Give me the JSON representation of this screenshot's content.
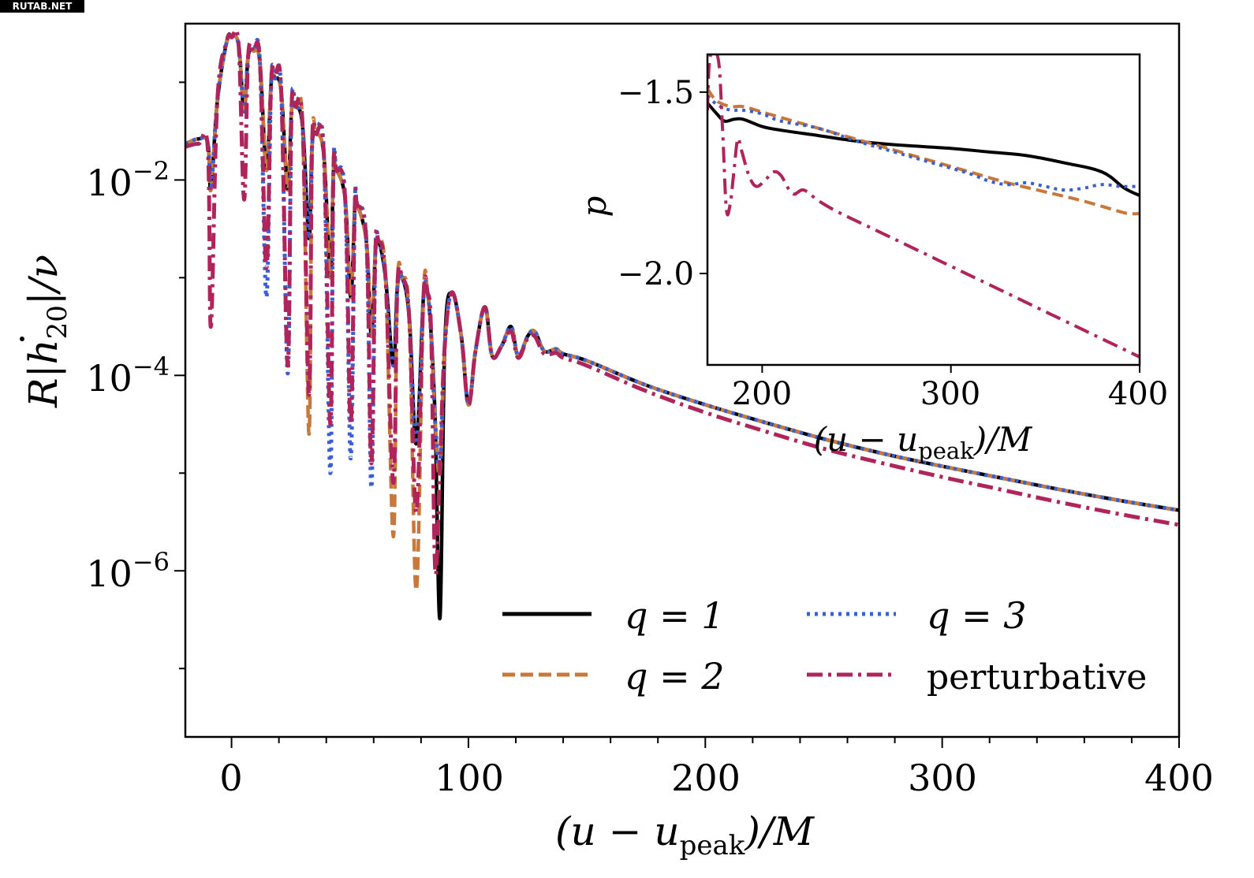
{
  "watermark": "RUTAB.NET",
  "colors": {
    "q1": "#000000",
    "q2": "#c8783a",
    "q3": "#3a5fd0",
    "perturbative": "#b0245c",
    "axis": "#000000",
    "background": "#ffffff"
  },
  "chart_data": [
    {
      "id": "main",
      "type": "line",
      "xlabel": "(u − u_peak)/M",
      "xlabel_parts": {
        "pre": "(u − u",
        "sub": "peak",
        "post": ")/M"
      },
      "ylabel": "R|ḣ20|/ν",
      "ylabel_parts": {
        "pre": "R|",
        "h": "h",
        "sub": "20",
        "post": "|/ν"
      },
      "yscale": "log",
      "xlim": [
        -19.5,
        400
      ],
      "ylim_log10": [
        -7.7,
        -0.4
      ],
      "xticks": [
        0,
        100,
        200,
        300,
        400
      ],
      "xtick_labels": [
        "0",
        "100",
        "200",
        "300",
        "400"
      ],
      "xminor_step": 20,
      "yticks_log10": [
        -2,
        -4,
        -6
      ],
      "ytick_labels": [
        {
          "base": "10",
          "exp": "−2"
        },
        {
          "base": "10",
          "exp": "−4"
        },
        {
          "base": "10",
          "exp": "−6"
        }
      ],
      "yminor_log10": [
        -1,
        -3,
        -5,
        -7
      ],
      "legend": {
        "placement": "lower-right",
        "columns": 2,
        "entries": [
          {
            "key": "q1",
            "label": "q = 1",
            "style": "solid"
          },
          {
            "key": "q2",
            "label": "q = 2",
            "style": "dashed"
          },
          {
            "key": "q3",
            "label": "q = 3",
            "style": "dotted"
          },
          {
            "key": "perturbative",
            "label": "perturbative",
            "style": "dashdot"
          }
        ]
      },
      "series": [
        {
          "key": "q1",
          "name": "q = 1",
          "style": "solid",
          "x": [
            -19.5,
            -14,
            -10,
            -8.7,
            -6,
            -2,
            0,
            3,
            5.3,
            7,
            9.3,
            12,
            14.7,
            16.7,
            18.3,
            21,
            23.7,
            25.3,
            27,
            30,
            32.7,
            34,
            35.7,
            39,
            41.7,
            43,
            44.3,
            48,
            50.3,
            52,
            53,
            57,
            59,
            60.7,
            62,
            65,
            68.3,
            70,
            72,
            75,
            78,
            81,
            82.7,
            84.3,
            86,
            88,
            90,
            93,
            97,
            100,
            103,
            107,
            110,
            114,
            118,
            121,
            125,
            128,
            132,
            137,
            140,
            150,
            175,
            200,
            225,
            250,
            275,
            300,
            325,
            350,
            375,
            400
          ],
          "log10y": [
            -1.63,
            -1.58,
            -1.62,
            -2.1,
            -1.2,
            -0.58,
            -0.53,
            -0.62,
            -1.3,
            -0.74,
            -0.68,
            -0.8,
            -1.9,
            -1.02,
            -0.96,
            -1.1,
            -2.1,
            -1.3,
            -1.25,
            -1.45,
            -2.6,
            -1.65,
            -1.53,
            -1.75,
            -3.0,
            -1.93,
            -1.9,
            -2.2,
            -3.2,
            -2.3,
            -2.25,
            -2.65,
            -3.6,
            -2.75,
            -2.62,
            -3.0,
            -3.9,
            -3.1,
            -3.0,
            -3.4,
            -4.7,
            -3.2,
            -3.15,
            -3.6,
            -4.5,
            -6.48,
            -3.7,
            -3.15,
            -3.6,
            -4.3,
            -3.75,
            -3.3,
            -3.8,
            -3.7,
            -3.5,
            -3.8,
            -3.6,
            -3.55,
            -3.75,
            -3.73,
            -3.78,
            -3.85,
            -4.1,
            -4.3,
            -4.48,
            -4.65,
            -4.8,
            -4.93,
            -5.05,
            -5.17,
            -5.28,
            -5.38
          ]
        },
        {
          "key": "q2",
          "name": "q = 2",
          "style": "dashed",
          "x": [
            -19.5,
            -14,
            -10,
            -8.7,
            -6,
            -2,
            0,
            3,
            5.3,
            7,
            9.3,
            12,
            14.7,
            16.7,
            18.3,
            21,
            23.7,
            25.3,
            27,
            30,
            32.7,
            34,
            35.7,
            39,
            41.7,
            43,
            44.3,
            48,
            50.3,
            52,
            53,
            57,
            59,
            60.7,
            62,
            65,
            68.3,
            70,
            72,
            75,
            78,
            81,
            82.7,
            84.3,
            86,
            88,
            90,
            93,
            97,
            100,
            103,
            107,
            110,
            114,
            118,
            121,
            125,
            128,
            132,
            137,
            140,
            150,
            175,
            200,
            225,
            250,
            275,
            300,
            325,
            350,
            375,
            400
          ],
          "log10y": [
            -1.63,
            -1.58,
            -1.62,
            -2.1,
            -1.2,
            -0.58,
            -0.53,
            -0.62,
            -1.3,
            -0.74,
            -0.68,
            -0.8,
            -1.9,
            -1.02,
            -0.96,
            -1.1,
            -2.1,
            -1.3,
            -1.25,
            -1.45,
            -4.6,
            -1.65,
            -1.53,
            -1.75,
            -3.0,
            -1.93,
            -1.9,
            -2.2,
            -3.2,
            -2.3,
            -2.25,
            -2.65,
            -3.6,
            -2.75,
            -2.62,
            -3.0,
            -5.65,
            -3.1,
            -3.0,
            -3.4,
            -6.2,
            -3.2,
            -3.15,
            -3.6,
            -4.5,
            -5.0,
            -3.7,
            -3.15,
            -3.6,
            -4.3,
            -3.75,
            -3.3,
            -3.8,
            -3.7,
            -3.5,
            -3.8,
            -3.6,
            -3.55,
            -3.75,
            -3.73,
            -3.78,
            -3.85,
            -4.1,
            -4.3,
            -4.48,
            -4.65,
            -4.8,
            -4.93,
            -5.05,
            -5.17,
            -5.28,
            -5.38
          ]
        },
        {
          "key": "q3",
          "name": "q = 3",
          "style": "dotted",
          "x": [
            -19.5,
            -14,
            -10,
            -8.7,
            -6,
            -2,
            0,
            3,
            5.3,
            7,
            9.3,
            12,
            14.7,
            16.7,
            18.3,
            21,
            23.7,
            25.3,
            27,
            30,
            32.7,
            34,
            35.7,
            39,
            41.7,
            43,
            44.3,
            48,
            50.3,
            52,
            53,
            57,
            59,
            60.7,
            62,
            65,
            68.3,
            70,
            72,
            75,
            78,
            81,
            82.7,
            84.3,
            86,
            88,
            90,
            93,
            97,
            100,
            103,
            107,
            110,
            114,
            118,
            121,
            125,
            128,
            132,
            137,
            140,
            150,
            175,
            200,
            225,
            250,
            275,
            300,
            325,
            350,
            375,
            400
          ],
          "log10y": [
            -1.63,
            -1.58,
            -1.62,
            -2.1,
            -1.2,
            -0.58,
            -0.53,
            -0.62,
            -1.3,
            -0.74,
            -0.68,
            -0.8,
            -3.2,
            -1.02,
            -0.96,
            -1.1,
            -3.98,
            -1.3,
            -1.25,
            -1.45,
            -2.6,
            -1.65,
            -1.53,
            -1.75,
            -5.0,
            -1.93,
            -1.9,
            -2.2,
            -4.85,
            -2.3,
            -2.25,
            -2.65,
            -5.15,
            -2.75,
            -2.62,
            -3.0,
            -3.9,
            -3.1,
            -3.0,
            -3.4,
            -4.7,
            -3.2,
            -3.15,
            -3.6,
            -4.5,
            -4.9,
            -3.7,
            -3.15,
            -3.6,
            -4.3,
            -3.75,
            -3.3,
            -3.8,
            -3.7,
            -3.5,
            -3.8,
            -3.6,
            -3.55,
            -3.75,
            -3.73,
            -3.78,
            -3.85,
            -4.1,
            -4.3,
            -4.48,
            -4.65,
            -4.8,
            -4.93,
            -5.05,
            -5.17,
            -5.28,
            -5.38
          ]
        },
        {
          "key": "perturbative",
          "name": "perturbative",
          "style": "dashdot",
          "x": [
            -19.5,
            -14,
            -10,
            -8.7,
            -6,
            -2,
            0,
            3,
            5.3,
            7,
            9.3,
            12,
            14.7,
            16.7,
            18.3,
            21,
            23.7,
            25.3,
            27,
            30,
            32.7,
            34,
            35.7,
            39,
            41.7,
            43,
            44.3,
            48,
            50.3,
            52,
            53,
            57,
            59,
            60.7,
            62,
            65,
            68.3,
            70,
            72,
            75,
            78,
            81,
            82.7,
            84.3,
            86,
            88,
            90,
            93,
            97,
            100,
            103,
            107,
            110,
            114,
            118,
            121,
            125,
            128,
            132,
            137,
            140,
            150,
            175,
            200,
            225,
            250,
            275,
            300,
            325,
            350,
            375,
            400
          ],
          "log10y": [
            -1.66,
            -1.63,
            -1.68,
            -3.5,
            -1.2,
            -0.58,
            -0.54,
            -0.62,
            -2.2,
            -0.74,
            -0.68,
            -0.8,
            -2.9,
            -1.02,
            -0.96,
            -1.1,
            -3.9,
            -1.3,
            -1.25,
            -1.45,
            -4.2,
            -1.65,
            -1.53,
            -1.75,
            -4.5,
            -1.93,
            -1.9,
            -2.2,
            -4.5,
            -2.3,
            -2.25,
            -2.65,
            -4.9,
            -2.75,
            -2.62,
            -3.0,
            -5.1,
            -3.1,
            -3.0,
            -3.4,
            -5.4,
            -3.2,
            -3.15,
            -3.6,
            -6.0,
            -4.9,
            -3.7,
            -3.15,
            -3.6,
            -4.3,
            -3.75,
            -3.3,
            -3.8,
            -3.7,
            -3.55,
            -3.82,
            -3.62,
            -3.6,
            -3.78,
            -3.77,
            -3.82,
            -3.9,
            -4.16,
            -4.38,
            -4.57,
            -4.75,
            -4.9,
            -5.04,
            -5.17,
            -5.3,
            -5.42,
            -5.53
          ]
        }
      ]
    },
    {
      "id": "inset",
      "type": "line",
      "xlabel": "(u − u_peak)/M",
      "xlabel_parts": {
        "pre": "(u − u",
        "sub": "peak",
        "post": ")/M"
      },
      "ylabel": "p",
      "xlim": [
        171,
        400
      ],
      "ylim": [
        -2.252,
        -1.396
      ],
      "xticks": [
        200,
        300,
        400
      ],
      "xtick_labels": [
        "200",
        "300",
        "400"
      ],
      "yticks": [
        -1.5,
        -2.0
      ],
      "ytick_labels": [
        "−1.5",
        "−2.0"
      ],
      "series": [
        {
          "key": "q1",
          "name": "q = 1",
          "style": "solid",
          "x": [
            171,
            176,
            180,
            185,
            190,
            200,
            210,
            230,
            250,
            270,
            300,
            320,
            340,
            360,
            380,
            392,
            400
          ],
          "y": [
            -1.53,
            -1.56,
            -1.58,
            -1.575,
            -1.575,
            -1.595,
            -1.605,
            -1.62,
            -1.635,
            -1.645,
            -1.655,
            -1.665,
            -1.675,
            -1.695,
            -1.72,
            -1.765,
            -1.785
          ]
        },
        {
          "key": "q2",
          "name": "q = 2",
          "style": "dashed",
          "x": [
            171,
            175,
            180,
            185,
            190,
            200,
            210,
            230,
            250,
            270,
            290,
            310,
            330,
            350,
            370,
            390,
            395,
            400
          ],
          "y": [
            -1.49,
            -1.52,
            -1.535,
            -1.54,
            -1.54,
            -1.555,
            -1.57,
            -1.6,
            -1.63,
            -1.66,
            -1.69,
            -1.72,
            -1.75,
            -1.775,
            -1.8,
            -1.83,
            -1.835,
            -1.835
          ]
        },
        {
          "key": "q3",
          "name": "q = 3",
          "style": "dotted",
          "x": [
            171,
            175,
            180,
            185,
            190,
            200,
            210,
            230,
            250,
            270,
            290,
            310,
            320,
            330,
            340,
            350,
            360,
            370,
            380,
            390,
            400
          ],
          "y": [
            -1.51,
            -1.53,
            -1.545,
            -1.55,
            -1.55,
            -1.56,
            -1.58,
            -1.6,
            -1.635,
            -1.665,
            -1.695,
            -1.725,
            -1.745,
            -1.755,
            -1.75,
            -1.76,
            -1.77,
            -1.765,
            -1.755,
            -1.76,
            -1.76
          ]
        },
        {
          "key": "perturbative",
          "name": "perturbative",
          "style": "dashdot",
          "x": [
            171,
            172,
            174,
            177,
            179,
            181,
            183,
            185,
            187,
            189,
            193,
            197,
            202,
            206,
            210,
            216,
            222,
            230,
            240,
            260,
            280,
            300,
            320,
            340,
            360,
            380,
            400
          ],
          "y": [
            -1.55,
            -1.42,
            -1.39,
            -1.42,
            -1.6,
            -1.82,
            -1.81,
            -1.72,
            -1.63,
            -1.66,
            -1.73,
            -1.76,
            -1.74,
            -1.72,
            -1.73,
            -1.78,
            -1.77,
            -1.8,
            -1.83,
            -1.88,
            -1.93,
            -1.98,
            -2.03,
            -2.08,
            -2.13,
            -2.18,
            -2.23
          ]
        }
      ]
    }
  ]
}
